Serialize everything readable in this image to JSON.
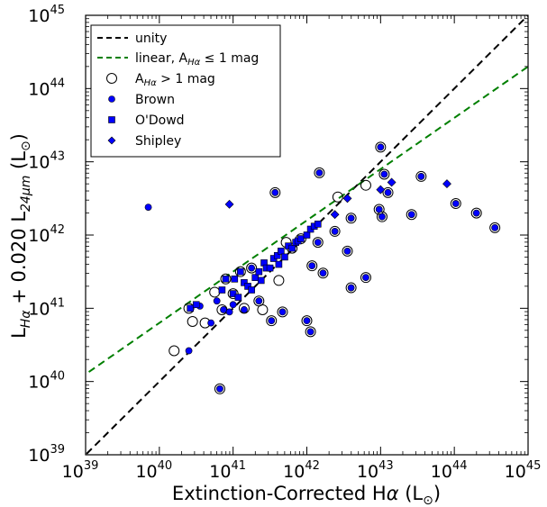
{
  "chart_data": {
    "type": "scatter",
    "xscale": "log",
    "yscale": "log",
    "xlim": [
      1e+39,
      1e+45
    ],
    "ylim": [
      1e+39,
      1e+45
    ],
    "xticks": [
      {
        "base": "10",
        "exp": "39"
      },
      {
        "base": "10",
        "exp": "40"
      },
      {
        "base": "10",
        "exp": "41"
      },
      {
        "base": "10",
        "exp": "42"
      },
      {
        "base": "10",
        "exp": "43"
      },
      {
        "base": "10",
        "exp": "44"
      },
      {
        "base": "10",
        "exp": "45"
      }
    ],
    "yticks": [
      {
        "base": "10",
        "exp": "39"
      },
      {
        "base": "10",
        "exp": "40"
      },
      {
        "base": "10",
        "exp": "41"
      },
      {
        "base": "10",
        "exp": "42"
      },
      {
        "base": "10",
        "exp": "43"
      },
      {
        "base": "10",
        "exp": "44"
      },
      {
        "base": "10",
        "exp": "45"
      }
    ],
    "xlabel": {
      "main": "Extinction-Corrected H",
      "greek": "α",
      "unit_open": " (L",
      "unit_sub": "⊙",
      "unit_close": ")"
    },
    "ylabel": {
      "part1": "L",
      "sub1": "Hα",
      "part2": " + 0.020 L",
      "sub2": "24μm",
      "part3": " (L",
      "sub3": "⊙",
      "part4": ")"
    },
    "grid": false,
    "legend_position": "top-left",
    "legend": {
      "unity": "unity",
      "linear_main": "linear, A",
      "linear_sub": "Hα",
      "linear_rest": " ≤ 1 mag",
      "ext_main": "A",
      "ext_sub": "Hα",
      "ext_rest": " > 1 mag",
      "brown": "Brown",
      "odowd": "O'Dowd",
      "shipley": "Shipley"
    },
    "colors": {
      "marker": "#0000ff",
      "unity": "#000000",
      "linear": "#007f00"
    },
    "lines": {
      "unity": {
        "slope": 1.0,
        "intercept": 0.0
      },
      "linear": {
        "slope": 0.7,
        "intercept": 12.8
      }
    },
    "series": [
      {
        "name": "Brown",
        "marker": "circle",
        "points": [
          [
            39.85,
            42.38
          ],
          [
            40.4,
            40.42
          ],
          [
            40.55,
            41.03
          ],
          [
            40.7,
            40.8
          ],
          [
            40.78,
            41.1
          ],
          [
            40.82,
            39.9
          ],
          [
            40.87,
            40.98
          ],
          [
            40.95,
            40.95
          ],
          [
            41.0,
            41.05
          ],
          [
            41.15,
            40.98
          ],
          [
            41.25,
            41.55
          ],
          [
            41.35,
            41.1
          ],
          [
            41.52,
            40.83
          ],
          [
            41.57,
            42.58
          ],
          [
            41.67,
            40.95
          ],
          [
            42.0,
            40.83
          ],
          [
            42.05,
            40.68
          ],
          [
            42.07,
            41.58
          ],
          [
            42.15,
            41.9
          ],
          [
            42.17,
            42.85
          ],
          [
            42.22,
            41.48
          ],
          [
            42.38,
            42.05
          ],
          [
            42.55,
            41.78
          ],
          [
            42.6,
            41.28
          ],
          [
            42.6,
            42.23
          ],
          [
            42.8,
            41.42
          ],
          [
            42.98,
            42.35
          ],
          [
            43.0,
            43.2
          ],
          [
            43.02,
            42.25
          ],
          [
            43.05,
            42.83
          ],
          [
            43.1,
            42.58
          ],
          [
            43.42,
            42.28
          ],
          [
            43.55,
            42.8
          ],
          [
            44.02,
            42.43
          ],
          [
            44.3,
            42.3
          ],
          [
            44.55,
            42.1
          ]
        ]
      },
      {
        "name": "O'Dowd",
        "marker": "square",
        "points": [
          [
            40.42,
            41.0
          ],
          [
            40.5,
            41.05
          ],
          [
            40.85,
            41.25
          ],
          [
            40.9,
            41.4
          ],
          [
            41.0,
            41.2
          ],
          [
            41.02,
            41.4
          ],
          [
            41.07,
            41.15
          ],
          [
            41.1,
            41.5
          ],
          [
            41.15,
            41.35
          ],
          [
            41.2,
            41.3
          ],
          [
            41.25,
            41.25
          ],
          [
            41.3,
            41.42
          ],
          [
            41.35,
            41.5
          ],
          [
            41.38,
            41.38
          ],
          [
            41.42,
            41.62
          ],
          [
            41.45,
            41.55
          ],
          [
            41.5,
            41.55
          ],
          [
            41.55,
            41.68
          ],
          [
            41.6,
            41.72
          ],
          [
            41.62,
            41.6
          ],
          [
            41.65,
            41.78
          ],
          [
            41.7,
            41.7
          ],
          [
            41.75,
            41.85
          ],
          [
            41.8,
            41.82
          ],
          [
            41.85,
            41.9
          ],
          [
            41.88,
            41.92
          ],
          [
            41.92,
            41.95
          ],
          [
            42.0,
            42.0
          ],
          [
            42.05,
            42.08
          ],
          [
            42.1,
            42.12
          ],
          [
            42.15,
            42.15
          ]
        ]
      },
      {
        "name": "Shipley",
        "marker": "diamond",
        "points": [
          [
            40.95,
            42.42
          ],
          [
            42.38,
            42.28
          ],
          [
            42.55,
            42.5
          ],
          [
            43.0,
            42.62
          ],
          [
            43.15,
            42.72
          ],
          [
            43.9,
            42.7
          ]
        ]
      },
      {
        "name": "AHα > 1 mag",
        "marker": "ring",
        "points": [
          [
            40.2,
            40.42
          ],
          [
            40.4,
            41.0
          ],
          [
            40.45,
            40.82
          ],
          [
            40.62,
            40.8
          ],
          [
            40.75,
            41.22
          ],
          [
            40.82,
            39.9
          ],
          [
            40.85,
            40.98
          ],
          [
            40.9,
            41.4
          ],
          [
            41.0,
            41.2
          ],
          [
            41.1,
            41.5
          ],
          [
            41.15,
            41.0
          ],
          [
            41.25,
            41.55
          ],
          [
            41.35,
            41.1
          ],
          [
            41.4,
            40.98
          ],
          [
            41.52,
            40.83
          ],
          [
            41.57,
            42.58
          ],
          [
            41.62,
            41.38
          ],
          [
            41.67,
            40.95
          ],
          [
            41.72,
            41.9
          ],
          [
            41.8,
            41.82
          ],
          [
            41.92,
            41.95
          ],
          [
            42.0,
            40.83
          ],
          [
            42.05,
            40.68
          ],
          [
            42.07,
            41.58
          ],
          [
            42.15,
            41.9
          ],
          [
            42.17,
            42.85
          ],
          [
            42.22,
            41.48
          ],
          [
            42.38,
            42.05
          ],
          [
            42.42,
            42.52
          ],
          [
            42.55,
            41.78
          ],
          [
            42.6,
            41.28
          ],
          [
            42.6,
            42.23
          ],
          [
            42.8,
            41.42
          ],
          [
            42.8,
            42.68
          ],
          [
            42.98,
            42.35
          ],
          [
            43.0,
            43.2
          ],
          [
            43.02,
            42.25
          ],
          [
            43.05,
            42.83
          ],
          [
            43.1,
            42.58
          ],
          [
            43.42,
            42.28
          ],
          [
            43.55,
            42.8
          ],
          [
            44.02,
            42.43
          ],
          [
            44.3,
            42.3
          ],
          [
            44.55,
            42.1
          ]
        ]
      }
    ]
  }
}
